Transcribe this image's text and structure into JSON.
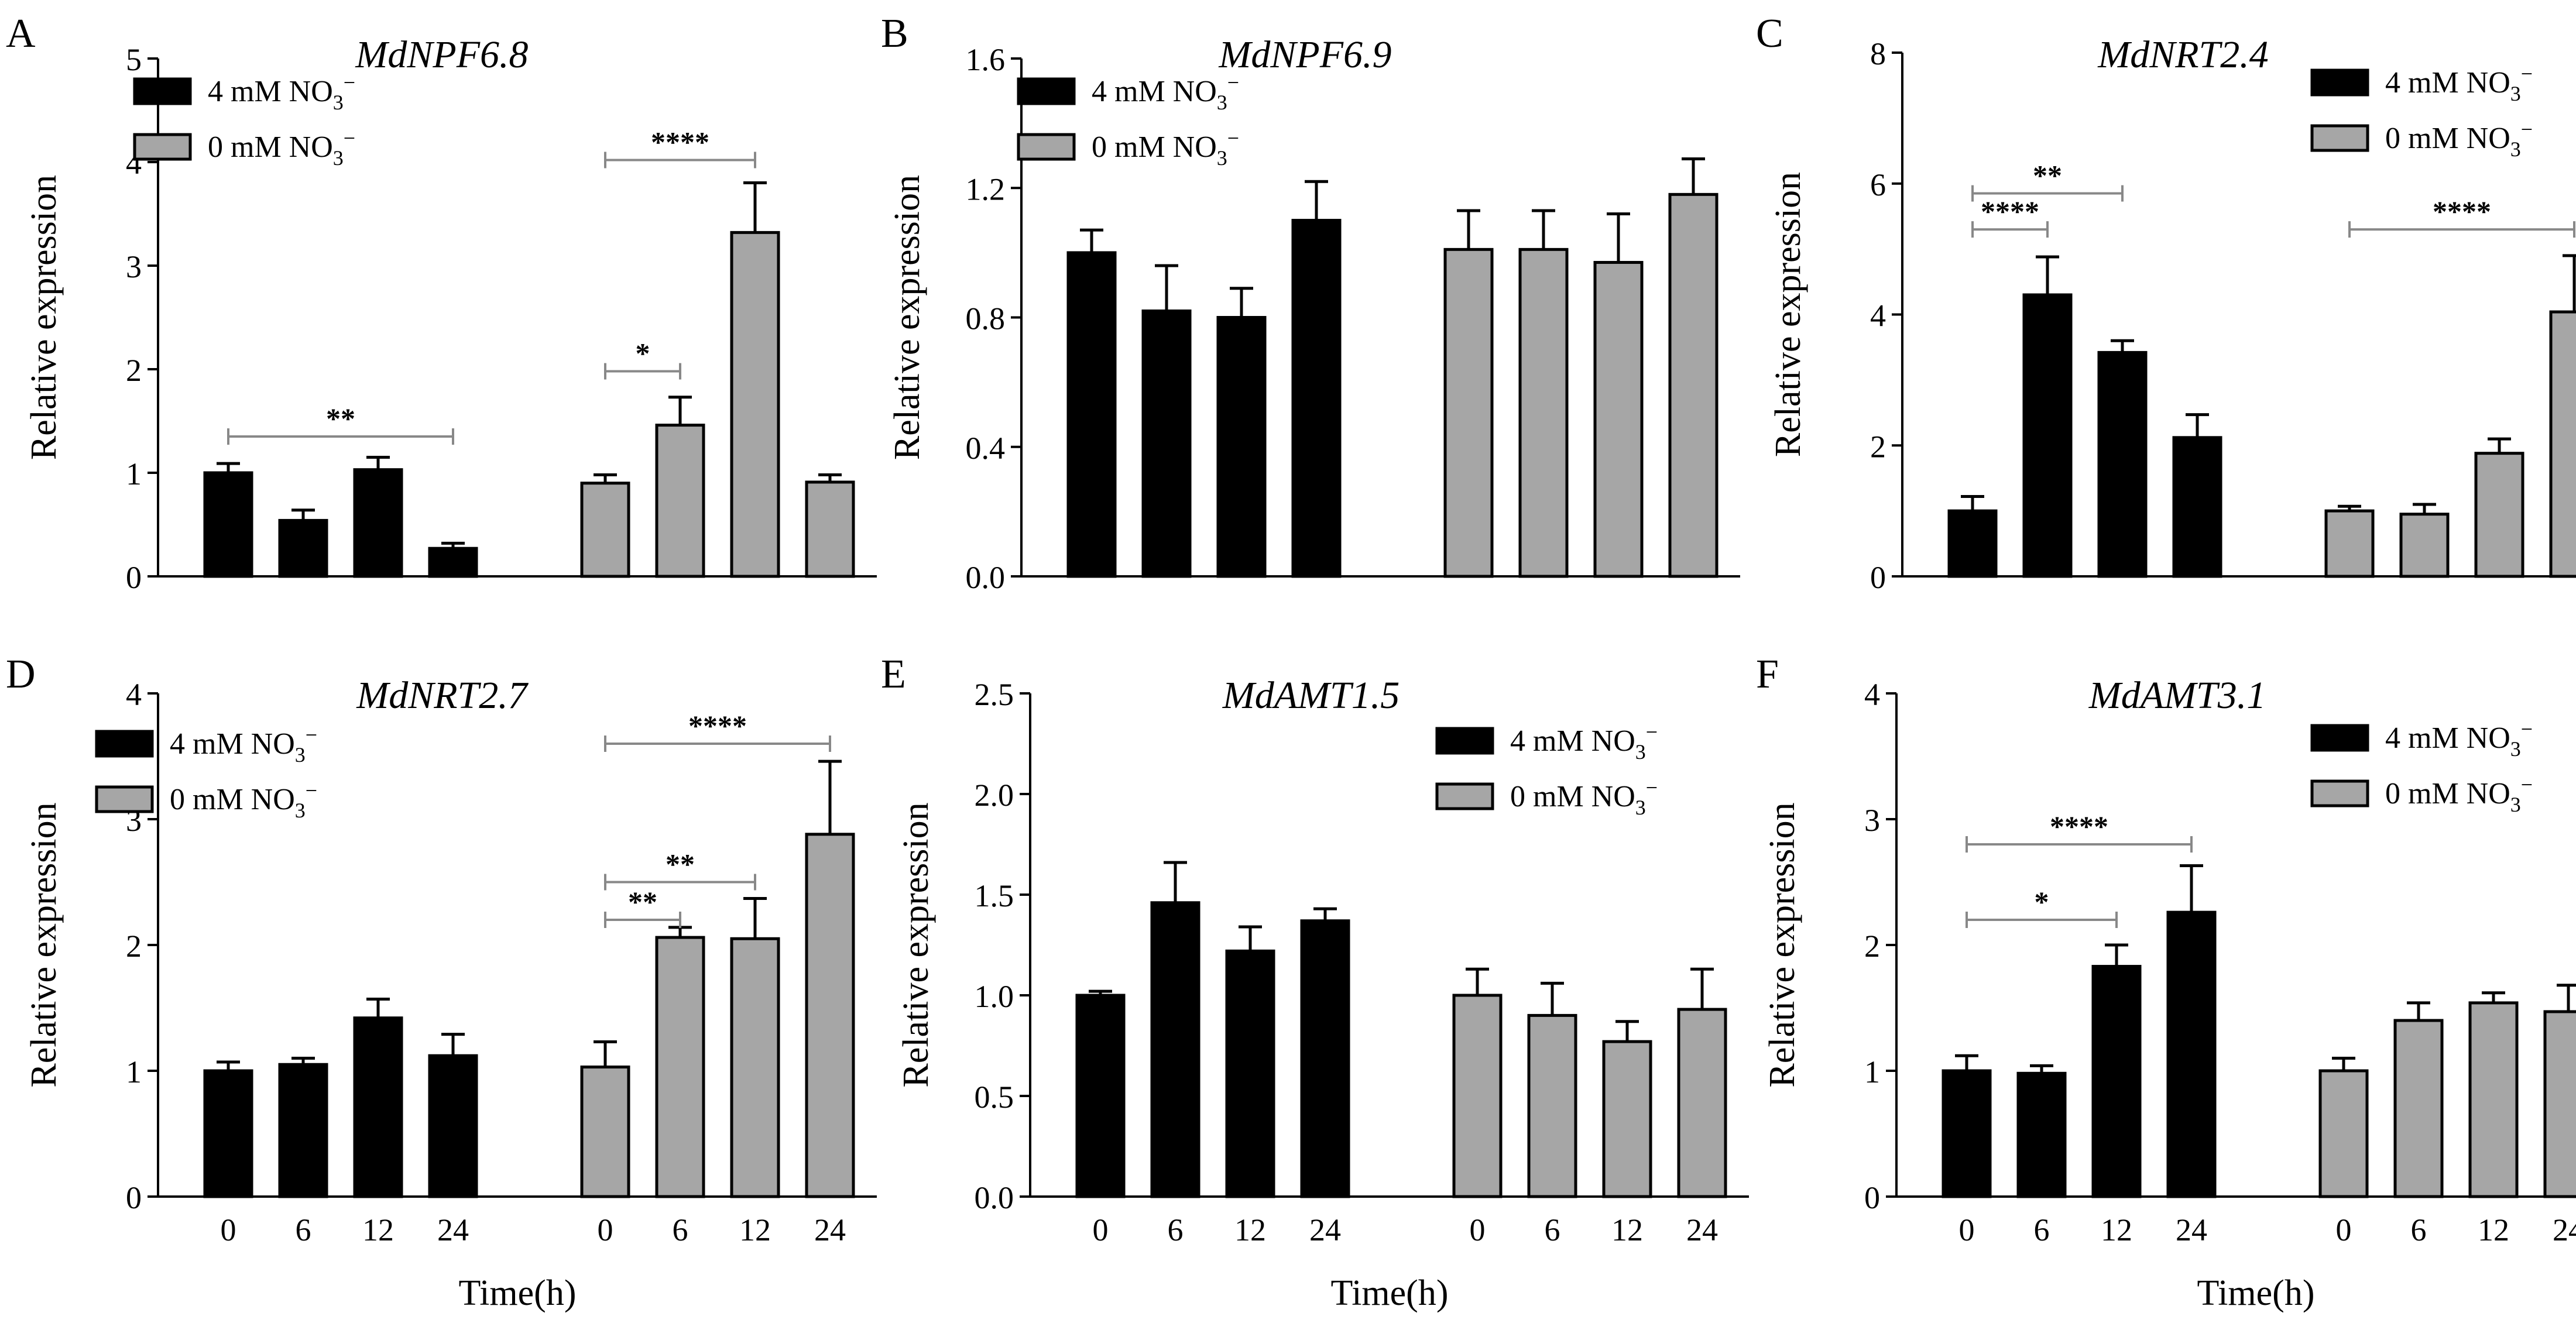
{
  "legend_labels": [
    "4 mM NO",
    "0 mM NO"
  ],
  "legend_sup": "−",
  "legend_sub": "3",
  "colors": {
    "series_4mM": "#000000",
    "series_0mM": "#a6a6a6",
    "errbar": "#000000",
    "sigline": "#888888"
  },
  "chart_data": [
    {
      "panel": "A",
      "type": "bar",
      "title": "MdNPF6.8",
      "ylabel": "Relative expression",
      "xlabel": "",
      "ylim": [
        0,
        5
      ],
      "yticks": [
        "0",
        "1",
        "2",
        "3",
        "4",
        "5"
      ],
      "ytick_values": [
        0,
        1,
        2,
        3,
        4,
        5
      ],
      "categories": [
        "0",
        "6",
        "12",
        "24"
      ],
      "show_xticks": false,
      "legend": "top-left",
      "series": [
        {
          "name": "4 mM NO3−",
          "values": [
            1.0,
            0.54,
            1.03,
            0.27
          ],
          "errors": [
            0.09,
            0.1,
            0.12,
            0.05
          ]
        },
        {
          "name": "0 mM NO3−",
          "values": [
            0.9,
            1.46,
            3.32,
            0.91
          ],
          "errors": [
            0.08,
            0.27,
            0.48,
            0.07
          ]
        }
      ],
      "significance": [
        {
          "label": "**",
          "from": [
            0,
            0
          ],
          "to": [
            0,
            3
          ],
          "y": 1.35
        },
        {
          "label": "*",
          "from": [
            1,
            0
          ],
          "to": [
            1,
            1
          ],
          "y": 1.98
        },
        {
          "label": "****",
          "from": [
            1,
            0
          ],
          "to": [
            1,
            2
          ],
          "y": 4.02
        }
      ]
    },
    {
      "panel": "B",
      "type": "bar",
      "title": "MdNPF6.9",
      "ylabel": "Relative expression",
      "xlabel": "",
      "ylim": [
        0,
        1.6
      ],
      "yticks": [
        "0.0",
        "0.4",
        "0.8",
        "1.2",
        "1.6"
      ],
      "ytick_values": [
        0,
        0.4,
        0.8,
        1.2,
        1.6
      ],
      "categories": [
        "0",
        "6",
        "12",
        "24"
      ],
      "show_xticks": false,
      "legend": "top-left",
      "series": [
        {
          "name": "4 mM NO3−",
          "values": [
            1.0,
            0.82,
            0.8,
            1.1
          ],
          "errors": [
            0.07,
            0.14,
            0.09,
            0.12
          ]
        },
        {
          "name": "0 mM NO3−",
          "values": [
            1.01,
            1.01,
            0.97,
            1.18
          ],
          "errors": [
            0.12,
            0.12,
            0.15,
            0.11
          ]
        }
      ],
      "significance": []
    },
    {
      "panel": "C",
      "type": "bar",
      "title": "MdNRT2.4",
      "ylabel": "Relative expression",
      "xlabel": "",
      "ylim": [
        0,
        8
      ],
      "yticks": [
        "0",
        "2",
        "4",
        "6",
        "8"
      ],
      "ytick_values": [
        0,
        2,
        4,
        6,
        8
      ],
      "categories": [
        "0",
        "6",
        "12",
        "24"
      ],
      "show_xticks": false,
      "legend": "top-right",
      "series": [
        {
          "name": "4 mM NO3−",
          "values": [
            1.0,
            4.3,
            3.42,
            2.12
          ],
          "errors": [
            0.22,
            0.58,
            0.18,
            0.35
          ]
        },
        {
          "name": "0 mM NO3−",
          "values": [
            1.0,
            0.95,
            1.88,
            4.04
          ],
          "errors": [
            0.07,
            0.15,
            0.22,
            0.86
          ]
        }
      ],
      "significance": [
        {
          "label": "****",
          "from": [
            0,
            0
          ],
          "to": [
            0,
            1
          ],
          "y": 5.3
        },
        {
          "label": "**",
          "from": [
            0,
            0
          ],
          "to": [
            0,
            2
          ],
          "y": 5.85
        },
        {
          "label": "****",
          "from": [
            1,
            0
          ],
          "to": [
            1,
            3
          ],
          "y": 5.3
        }
      ]
    },
    {
      "panel": "D",
      "type": "bar",
      "title": "MdNRT2.7",
      "ylabel": "Relative expression",
      "xlabel": "Time(h)",
      "ylim": [
        0,
        4
      ],
      "yticks": [
        "0",
        "1",
        "2",
        "3",
        "4"
      ],
      "ytick_values": [
        0,
        1,
        2,
        3,
        4
      ],
      "categories": [
        "0",
        "6",
        "12",
        "24"
      ],
      "show_xticks": true,
      "legend": "top-left",
      "series": [
        {
          "name": "4 mM NO3−",
          "values": [
            1.0,
            1.05,
            1.42,
            1.12
          ],
          "errors": [
            0.07,
            0.05,
            0.15,
            0.17
          ]
        },
        {
          "name": "0 mM NO3−",
          "values": [
            1.03,
            2.06,
            2.05,
            2.88
          ],
          "errors": [
            0.2,
            0.08,
            0.32,
            0.58
          ]
        }
      ],
      "significance": [
        {
          "label": "**",
          "from": [
            1,
            0
          ],
          "to": [
            1,
            1
          ],
          "y": 2.2
        },
        {
          "label": "**",
          "from": [
            1,
            0
          ],
          "to": [
            1,
            2
          ],
          "y": 2.5
        },
        {
          "label": "****",
          "from": [
            1,
            0
          ],
          "to": [
            1,
            3
          ],
          "y": 3.6
        }
      ]
    },
    {
      "panel": "E",
      "type": "bar",
      "title": "MdAMT1.5",
      "ylabel": "Relative expression",
      "xlabel": "Time(h)",
      "ylim": [
        0,
        2.5
      ],
      "yticks": [
        "0.0",
        "0.5",
        "1.0",
        "1.5",
        "2.0",
        "2.5"
      ],
      "ytick_values": [
        0,
        0.5,
        1,
        1.5,
        2,
        2.5
      ],
      "categories": [
        "0",
        "6",
        "12",
        "24"
      ],
      "show_xticks": true,
      "legend": "top-right",
      "series": [
        {
          "name": "4 mM NO3−",
          "values": [
            1.0,
            1.46,
            1.22,
            1.37
          ],
          "errors": [
            0.02,
            0.2,
            0.12,
            0.06
          ]
        },
        {
          "name": "0 mM NO3−",
          "values": [
            1.0,
            0.9,
            0.77,
            0.93
          ],
          "errors": [
            0.13,
            0.16,
            0.1,
            0.2
          ]
        }
      ],
      "significance": []
    },
    {
      "panel": "F",
      "type": "bar",
      "title": "MdAMT3.1",
      "ylabel": "Relative expression",
      "xlabel": "Time(h)",
      "ylim": [
        0,
        4
      ],
      "yticks": [
        "0",
        "1",
        "2",
        "3",
        "4"
      ],
      "ytick_values": [
        0,
        1,
        2,
        3,
        4
      ],
      "categories": [
        "0",
        "6",
        "12",
        "24"
      ],
      "show_xticks": true,
      "legend": "top-right",
      "series": [
        {
          "name": "4 mM NO3−",
          "values": [
            1.0,
            0.98,
            1.83,
            2.26
          ],
          "errors": [
            0.12,
            0.06,
            0.17,
            0.37
          ]
        },
        {
          "name": "0 mM NO3−",
          "values": [
            1.0,
            1.4,
            1.54,
            1.47
          ],
          "errors": [
            0.1,
            0.14,
            0.08,
            0.21
          ]
        }
      ],
      "significance": [
        {
          "label": "*",
          "from": [
            0,
            0
          ],
          "to": [
            0,
            2
          ],
          "y": 2.2
        },
        {
          "label": "****",
          "from": [
            0,
            0
          ],
          "to": [
            0,
            3
          ],
          "y": 2.8
        }
      ]
    }
  ]
}
